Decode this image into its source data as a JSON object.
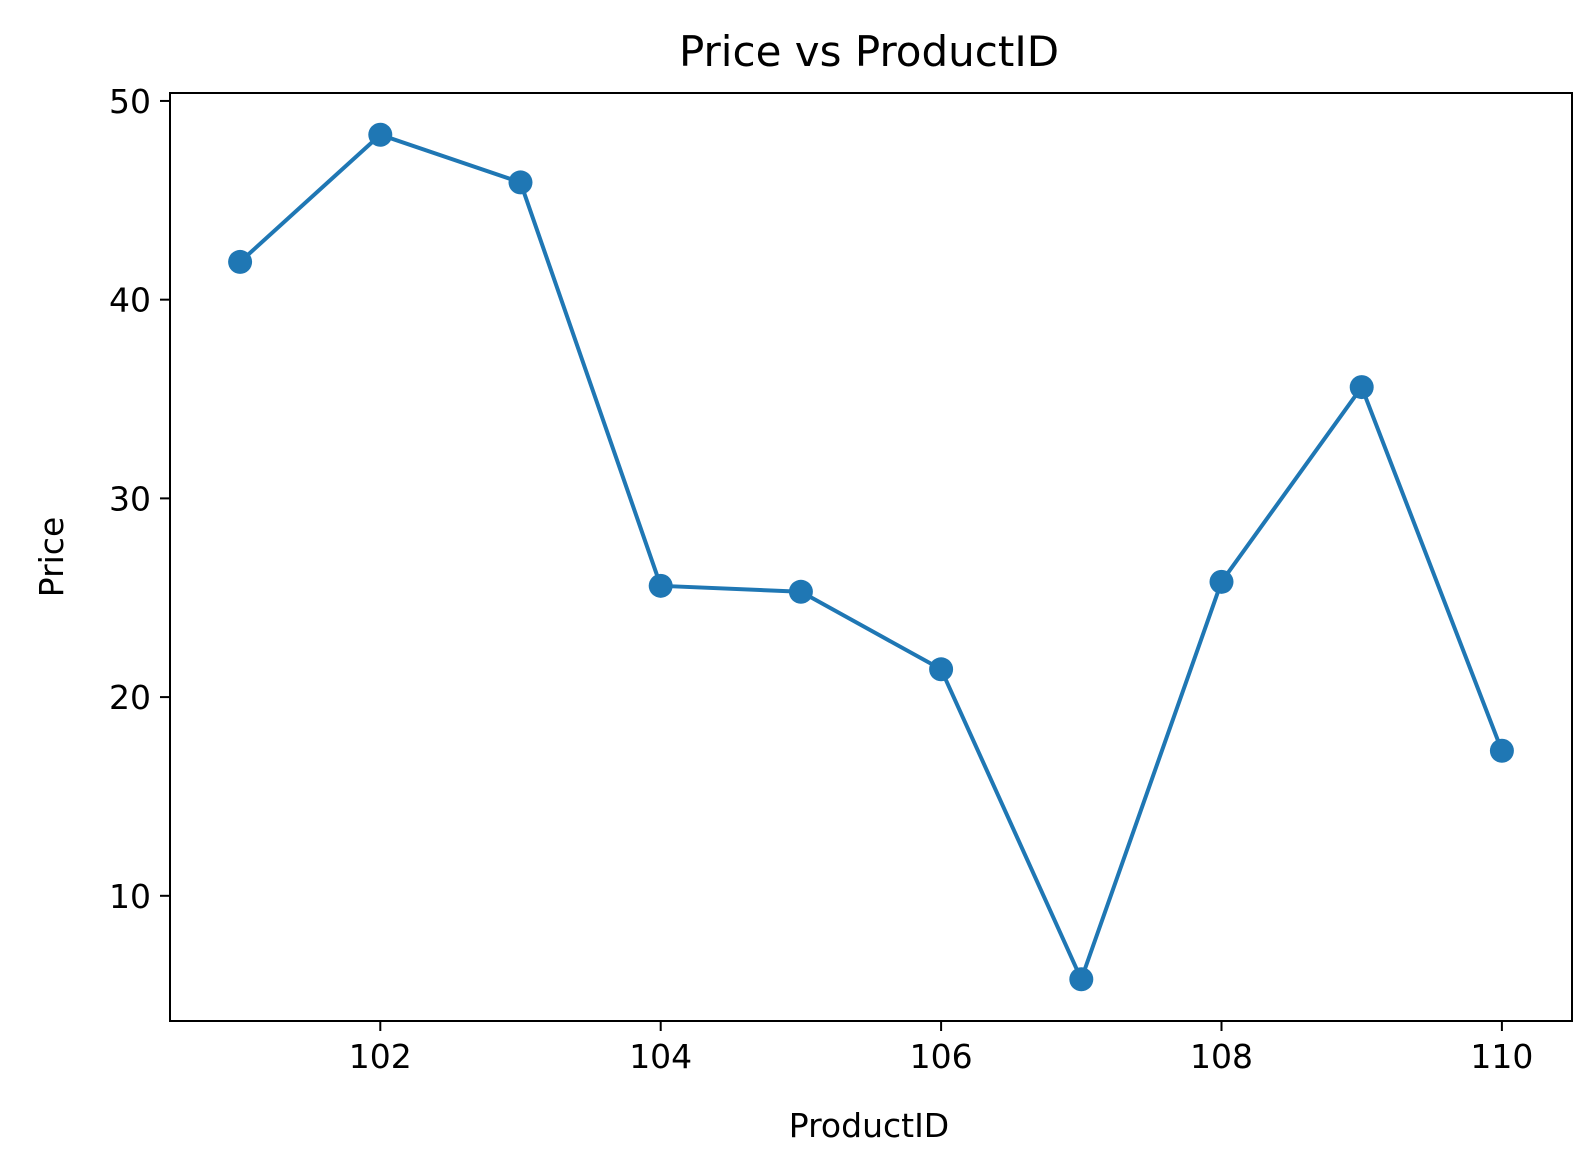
{
  "chart_data": {
    "type": "line",
    "title": "Price vs ProductID",
    "xlabel": "ProductID",
    "ylabel": "Price",
    "x": [
      101,
      102,
      103,
      104,
      105,
      106,
      107,
      108,
      109,
      110
    ],
    "series": [
      {
        "values": [
          41.9,
          48.3,
          45.9,
          25.6,
          25.3,
          21.4,
          5.8,
          25.8,
          35.6,
          17.3
        ]
      }
    ],
    "xlim": [
      100.5,
      110.5
    ],
    "ylim": [
      3.7,
      50.4
    ],
    "xticks": [
      102,
      104,
      106,
      108,
      110
    ],
    "yticks": [
      10,
      20,
      30,
      40,
      50
    ],
    "grid": false,
    "markers": true,
    "colors": {
      "line": "#1f77b4",
      "marker": "#1f77b4",
      "axes": "#000000"
    }
  }
}
